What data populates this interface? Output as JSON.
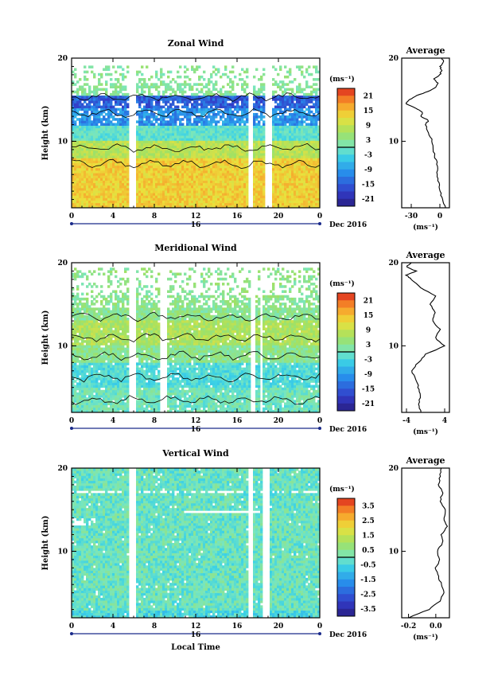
{
  "chart_data": [
    {
      "type": "heatmap",
      "title": "Zonal Wind",
      "xlabel": "",
      "ylabel": "Height (km)",
      "x_ticks": [
        "0",
        "4",
        "8",
        "12",
        "16",
        "20",
        "0"
      ],
      "y_ticks": [
        "10",
        "20"
      ],
      "ylim": [
        2,
        20
      ],
      "xlim": [
        0,
        24
      ],
      "date_marker": "16",
      "date_label": "Dec 2016",
      "colorbar": {
        "unit": "(ms⁻¹)",
        "ticks": [
          "21",
          "15",
          "9",
          "3",
          "-3",
          "-9",
          "-15",
          "-21"
        ],
        "range": [
          -24,
          24
        ]
      },
      "profile": {
        "title": "Average",
        "x_ticks": [
          "-30",
          "0"
        ],
        "y_ticks": [
          "10",
          "20"
        ],
        "xlim": [
          -40,
          10
        ],
        "xlabel": "(ms⁻¹)",
        "heights": [
          2,
          3,
          4,
          5,
          6,
          7,
          8,
          9,
          10,
          11,
          12,
          12.5,
          13,
          13.5,
          14,
          14.5,
          15,
          15.5,
          16,
          16.5,
          17,
          17.5,
          18,
          18.5,
          19,
          19.5,
          20
        ],
        "values": [
          6,
          3,
          0,
          -1,
          -3,
          -2,
          -5,
          -7,
          -8,
          -12,
          -15,
          -12,
          -20,
          -18,
          -25,
          -36,
          -32,
          -24,
          -12,
          -5,
          -2,
          -6,
          0,
          2,
          0,
          4,
          2
        ]
      }
    },
    {
      "type": "heatmap",
      "title": "Meridional Wind",
      "xlabel": "",
      "ylabel": "Height (km)",
      "x_ticks": [
        "0",
        "4",
        "8",
        "12",
        "16",
        "20",
        "0"
      ],
      "y_ticks": [
        "10",
        "20"
      ],
      "ylim": [
        2,
        20
      ],
      "xlim": [
        0,
        24
      ],
      "date_marker": "16",
      "date_label": "Dec 2016",
      "colorbar": {
        "unit": "(ms⁻¹)",
        "ticks": [
          "21",
          "15",
          "9",
          "3",
          "-3",
          "-9",
          "-15",
          "-21"
        ],
        "range": [
          -24,
          24
        ]
      },
      "profile": {
        "title": "Average",
        "x_ticks": [
          "-4",
          "4"
        ],
        "y_ticks": [
          "10",
          "20"
        ],
        "xlim": [
          -5,
          5
        ],
        "xlabel": "(ms⁻¹)",
        "heights": [
          2,
          3,
          4,
          5,
          6,
          7,
          8,
          9,
          10,
          11,
          12,
          13,
          14,
          15,
          16,
          17,
          18,
          18.5,
          19,
          19.5,
          20
        ],
        "values": [
          -1,
          -1.5,
          -1,
          -1.5,
          -2,
          -3,
          -1.5,
          0,
          4,
          2,
          3,
          1.5,
          2,
          1,
          2,
          -1,
          -3,
          -4,
          -2,
          -4,
          -3
        ]
      }
    },
    {
      "type": "heatmap",
      "title": "Vertical Wind",
      "xlabel": "Local Time",
      "ylabel": "Height (km)",
      "x_ticks": [
        "0",
        "4",
        "8",
        "12",
        "16",
        "20",
        "0"
      ],
      "y_ticks": [
        "10",
        "20"
      ],
      "ylim": [
        2,
        20
      ],
      "xlim": [
        0,
        24
      ],
      "date_marker": "16",
      "date_label": "Dec 2016",
      "colorbar": {
        "unit": "(ms⁻¹)",
        "ticks": [
          "3.5",
          "2.5",
          "1.5",
          "0.5",
          "-0.5",
          "-1.5",
          "-2.5",
          "-3.5"
        ],
        "range": [
          -4,
          4
        ]
      },
      "profile": {
        "title": "Average",
        "x_ticks": [
          "-0.2",
          "0.0"
        ],
        "y_ticks": [
          "10",
          "20"
        ],
        "xlim": [
          -0.25,
          0.1
        ],
        "xlabel": "(ms⁻¹)",
        "heights": [
          2,
          3,
          4,
          5,
          6,
          7,
          8,
          9,
          10,
          11,
          12,
          13,
          14,
          15,
          16,
          17,
          18,
          19,
          20
        ],
        "values": [
          -0.2,
          -0.05,
          0.03,
          0.06,
          0.04,
          0.02,
          0.0,
          0.03,
          0.01,
          0.05,
          0.04,
          0.08,
          0.06,
          0.07,
          0.03,
          0.05,
          0.02,
          0.03,
          0.04
        ]
      }
    }
  ]
}
